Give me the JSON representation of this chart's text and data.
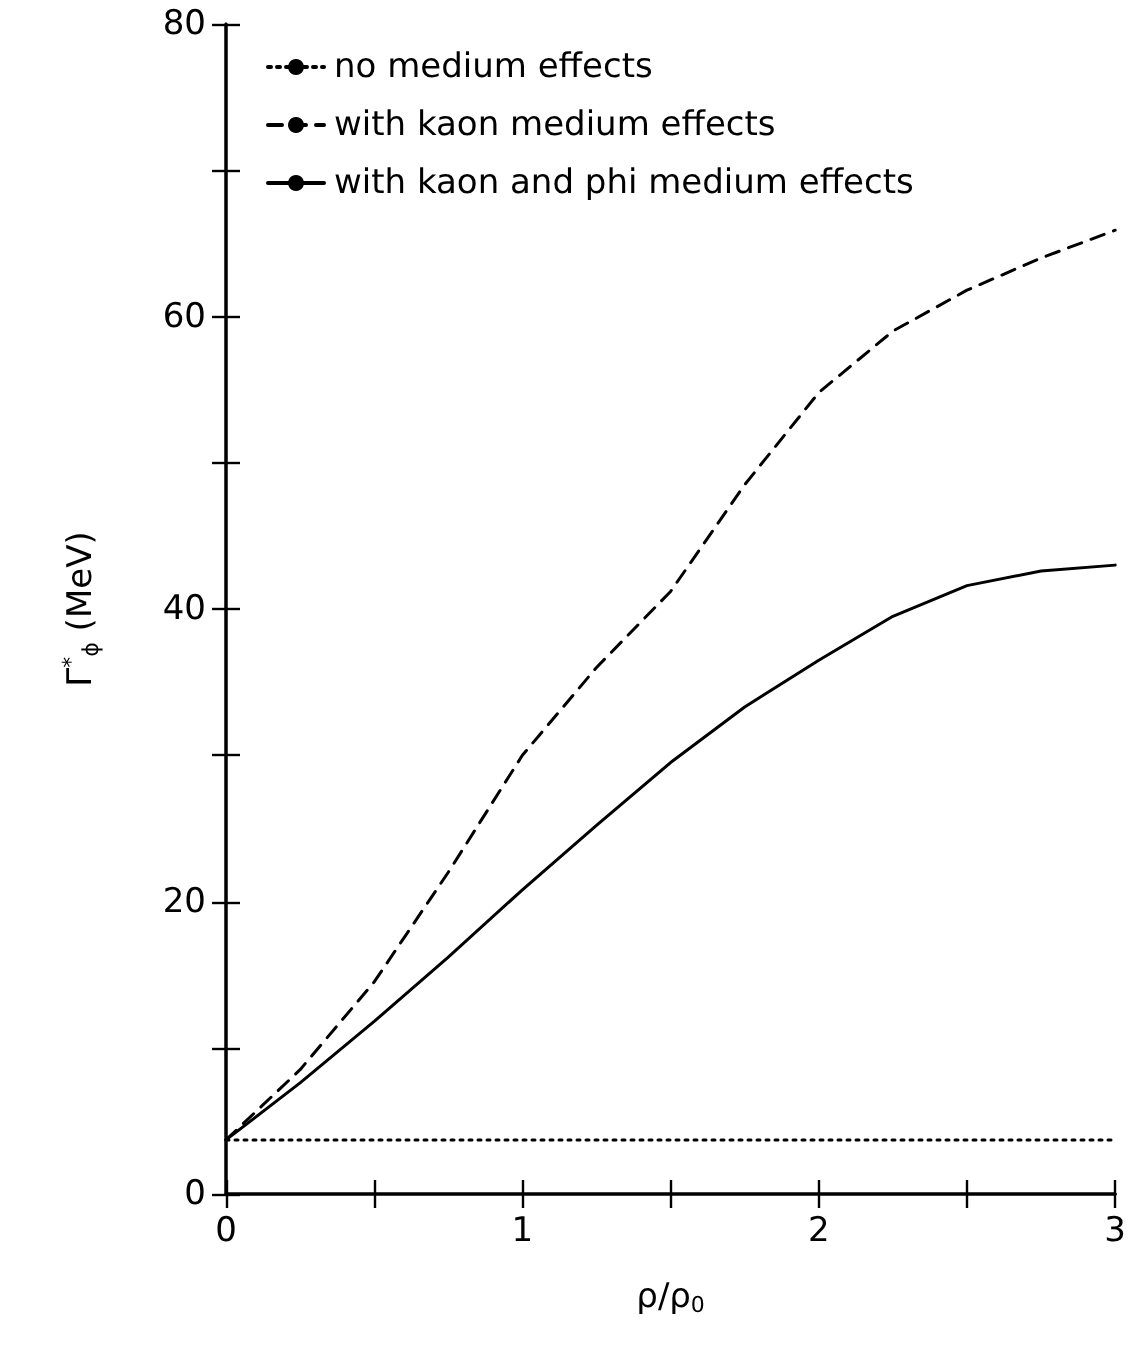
{
  "chart_data": {
    "type": "line",
    "xlabel": "ρ/ρ$_{0}$",
    "ylabel": "Γ$^{*}$$_{ϕ}$ (MeV)",
    "x": [
      0,
      0.25,
      0.5,
      0.75,
      1,
      1.25,
      1.5,
      1.75,
      2,
      2.25,
      2.5,
      2.75,
      3
    ],
    "series": [
      {
        "name": "no medium effects",
        "color": "#000000",
        "line_style": "dotted",
        "values": [
          3.7,
          3.7,
          3.7,
          3.7,
          3.7,
          3.7,
          3.7,
          3.7,
          3.7,
          3.7,
          3.7,
          3.7,
          3.7
        ]
      },
      {
        "name": "with kaon medium effects",
        "color": "#000000",
        "line_style": "dashed",
        "values": [
          3.7,
          8.5,
          14.5,
          22,
          30,
          36,
          41.2,
          48.5,
          54.8,
          59,
          61.8,
          64,
          65.9
        ]
      },
      {
        "name": "with kaon and phi medium effects",
        "color": "#000000",
        "line_style": "solid",
        "values": [
          3.7,
          7.6,
          11.8,
          16.2,
          20.8,
          25.2,
          29.5,
          33.3,
          36.5,
          39.5,
          41.6,
          42.6,
          43
        ]
      }
    ],
    "xlim": [
      0,
      3
    ],
    "xticks": [
      0,
      {
        "value": 0.5,
        "label": null
      },
      1,
      {
        "value": 1.5,
        "label": null
      },
      2,
      {
        "value": 2.5,
        "label": null
      },
      3
    ],
    "ylim": [
      0,
      80
    ],
    "yticks": [
      0,
      {
        "value": 10,
        "label": null
      },
      20,
      {
        "value": 30,
        "label": null
      },
      40,
      {
        "value": 50,
        "label": null
      },
      60,
      {
        "value": 70,
        "label": null
      },
      80
    ],
    "legend": "top left",
    "marker": "none",
    "grid": false
  }
}
